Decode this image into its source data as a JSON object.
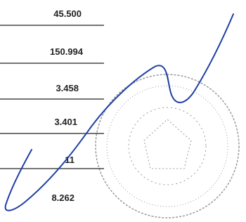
{
  "document": {
    "amounts": [
      "45.500",
      "150.994",
      "3.458",
      "3.401",
      "11",
      "8.262"
    ]
  }
}
